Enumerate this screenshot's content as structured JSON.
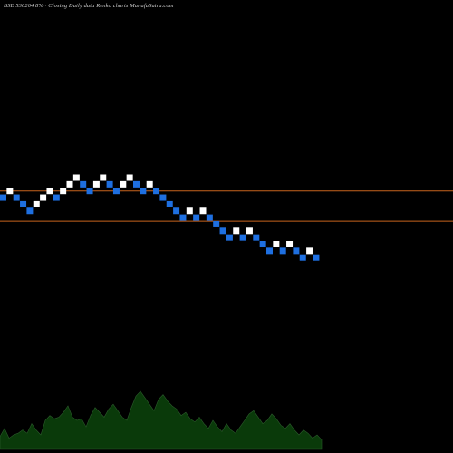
{
  "title": "BSE 536264  8%~  Closing Daily data  Renko  charts MunafaSutra.com",
  "chart_data": {
    "type": "renko",
    "title": "BSE 536264  8%~  Closing Daily data  Renko  charts MunafaSutra.com",
    "brick_size": 1,
    "colors": {
      "up": "#ffffff",
      "down": "#1e6fe0",
      "line": "#c8641e",
      "volume": "#0a3a0a",
      "background": "#000000"
    },
    "reference_lines": [
      63,
      59
    ],
    "bricks": [
      {
        "level": 62,
        "dir": "down"
      },
      {
        "level": 63,
        "dir": "up"
      },
      {
        "level": 62,
        "dir": "down"
      },
      {
        "level": 61,
        "dir": "down"
      },
      {
        "level": 60,
        "dir": "down"
      },
      {
        "level": 61,
        "dir": "up"
      },
      {
        "level": 62,
        "dir": "up"
      },
      {
        "level": 63,
        "dir": "up"
      },
      {
        "level": 62,
        "dir": "down"
      },
      {
        "level": 63,
        "dir": "up"
      },
      {
        "level": 64,
        "dir": "up"
      },
      {
        "level": 65,
        "dir": "up"
      },
      {
        "level": 64,
        "dir": "down"
      },
      {
        "level": 63,
        "dir": "down"
      },
      {
        "level": 64,
        "dir": "up"
      },
      {
        "level": 65,
        "dir": "up"
      },
      {
        "level": 64,
        "dir": "down"
      },
      {
        "level": 63,
        "dir": "down"
      },
      {
        "level": 64,
        "dir": "up"
      },
      {
        "level": 65,
        "dir": "up"
      },
      {
        "level": 64,
        "dir": "down"
      },
      {
        "level": 63,
        "dir": "down"
      },
      {
        "level": 64,
        "dir": "up"
      },
      {
        "level": 63,
        "dir": "down"
      },
      {
        "level": 62,
        "dir": "down"
      },
      {
        "level": 61,
        "dir": "down"
      },
      {
        "level": 60,
        "dir": "down"
      },
      {
        "level": 59,
        "dir": "down"
      },
      {
        "level": 60,
        "dir": "up"
      },
      {
        "level": 59,
        "dir": "down"
      },
      {
        "level": 60,
        "dir": "up"
      },
      {
        "level": 59,
        "dir": "down"
      },
      {
        "level": 58,
        "dir": "down"
      },
      {
        "level": 57,
        "dir": "down"
      },
      {
        "level": 56,
        "dir": "down"
      },
      {
        "level": 57,
        "dir": "up"
      },
      {
        "level": 56,
        "dir": "down"
      },
      {
        "level": 57,
        "dir": "up"
      },
      {
        "level": 56,
        "dir": "down"
      },
      {
        "level": 55,
        "dir": "down"
      },
      {
        "level": 54,
        "dir": "down"
      },
      {
        "level": 55,
        "dir": "up"
      },
      {
        "level": 54,
        "dir": "down"
      },
      {
        "level": 55,
        "dir": "up"
      },
      {
        "level": 54,
        "dir": "down"
      },
      {
        "level": 53,
        "dir": "down"
      },
      {
        "level": 54,
        "dir": "up"
      },
      {
        "level": 53,
        "dir": "down"
      }
    ],
    "volume": [
      8,
      13,
      7,
      9,
      10,
      12,
      10,
      16,
      12,
      9,
      18,
      21,
      19,
      20,
      23,
      27,
      20,
      18,
      19,
      14,
      21,
      26,
      23,
      20,
      25,
      28,
      24,
      20,
      18,
      26,
      33,
      36,
      32,
      28,
      24,
      31,
      34,
      30,
      27,
      25,
      21,
      23,
      19,
      17,
      20,
      16,
      13,
      18,
      14,
      11,
      16,
      12,
      10,
      14,
      18,
      22,
      24,
      20,
      16,
      18,
      22,
      19,
      15,
      13,
      16,
      12,
      9,
      12,
      10,
      7,
      9,
      6
    ]
  }
}
